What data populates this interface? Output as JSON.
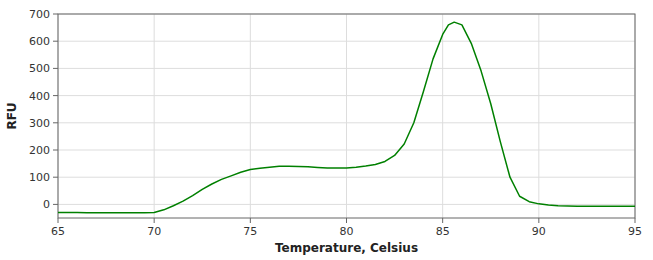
{
  "chart_data": {
    "type": "line",
    "xlabel": "Temperature, Celsius",
    "ylabel": "RFU",
    "xlim": [
      65,
      95
    ],
    "ylim": [
      -50,
      700
    ],
    "xticks": [
      65,
      70,
      75,
      80,
      85,
      90,
      95
    ],
    "yticks": [
      0,
      100,
      200,
      300,
      400,
      500,
      600,
      700
    ],
    "grid": true,
    "x": [
      65.0,
      65.5,
      66.0,
      66.5,
      67.0,
      67.5,
      68.0,
      68.5,
      69.0,
      69.5,
      70.0,
      70.5,
      71.0,
      71.5,
      72.0,
      72.5,
      73.0,
      73.5,
      74.0,
      74.5,
      75.0,
      75.5,
      76.0,
      76.5,
      77.0,
      77.5,
      78.0,
      78.5,
      79.0,
      79.5,
      80.0,
      80.5,
      81.0,
      81.5,
      82.0,
      82.5,
      83.0,
      83.5,
      84.0,
      84.5,
      85.0,
      85.3,
      85.6,
      86.0,
      86.5,
      87.0,
      87.5,
      88.0,
      88.5,
      89.0,
      89.5,
      90.0,
      90.5,
      91.0,
      91.5,
      92.0,
      92.5,
      93.0,
      93.5,
      94.0,
      94.5,
      95.0
    ],
    "series": [
      {
        "color": "#008000",
        "values": [
          -30,
          -30,
          -30,
          -31,
          -31,
          -31,
          -31,
          -31,
          -31,
          -31,
          -30,
          -20,
          -5,
          12,
          32,
          55,
          75,
          92,
          105,
          118,
          128,
          133,
          137,
          140,
          140,
          139,
          138,
          136,
          134,
          134,
          134,
          137,
          141,
          147,
          158,
          180,
          222,
          300,
          415,
          535,
          625,
          660,
          670,
          660,
          590,
          490,
          370,
          230,
          100,
          30,
          10,
          2,
          -2,
          -5,
          -6,
          -7,
          -7,
          -7,
          -7,
          -7,
          -7,
          -7
        ]
      }
    ]
  }
}
